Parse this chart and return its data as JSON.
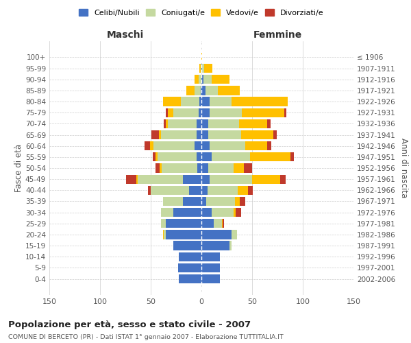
{
  "age_groups": [
    "0-4",
    "5-9",
    "10-14",
    "15-19",
    "20-24",
    "25-29",
    "30-34",
    "35-39",
    "40-44",
    "45-49",
    "50-54",
    "55-59",
    "60-64",
    "65-69",
    "70-74",
    "75-79",
    "80-84",
    "85-89",
    "90-94",
    "95-99",
    "100+"
  ],
  "birth_years": [
    "2002-2006",
    "1997-2001",
    "1992-1996",
    "1987-1991",
    "1982-1986",
    "1977-1981",
    "1972-1976",
    "1967-1971",
    "1962-1966",
    "1957-1961",
    "1952-1956",
    "1947-1951",
    "1942-1946",
    "1937-1941",
    "1932-1936",
    "1927-1931",
    "1922-1926",
    "1917-1921",
    "1912-1916",
    "1907-1911",
    "≤ 1906"
  ],
  "male": {
    "celibe": [
      22,
      23,
      22,
      28,
      35,
      35,
      28,
      18,
      12,
      18,
      4,
      5,
      7,
      5,
      5,
      3,
      2,
      1,
      0,
      0,
      0
    ],
    "coniugato": [
      0,
      0,
      0,
      0,
      2,
      5,
      12,
      20,
      38,
      45,
      35,
      38,
      40,
      35,
      28,
      25,
      18,
      6,
      3,
      1,
      0
    ],
    "vedovo": [
      0,
      0,
      0,
      0,
      1,
      0,
      0,
      0,
      0,
      1,
      2,
      2,
      4,
      2,
      2,
      5,
      18,
      8,
      4,
      1,
      0
    ],
    "divorziato": [
      0,
      0,
      0,
      0,
      0,
      0,
      0,
      0,
      3,
      10,
      4,
      3,
      5,
      7,
      2,
      2,
      0,
      0,
      0,
      0,
      0
    ]
  },
  "female": {
    "nubile": [
      18,
      18,
      18,
      28,
      30,
      12,
      10,
      5,
      6,
      8,
      7,
      10,
      8,
      7,
      7,
      8,
      8,
      4,
      2,
      1,
      0
    ],
    "coniugata": [
      0,
      0,
      0,
      2,
      5,
      8,
      22,
      28,
      30,
      42,
      25,
      38,
      35,
      32,
      30,
      32,
      22,
      12,
      8,
      2,
      0
    ],
    "vedova": [
      0,
      0,
      0,
      0,
      0,
      1,
      2,
      5,
      10,
      28,
      10,
      40,
      22,
      32,
      28,
      42,
      55,
      22,
      18,
      8,
      1
    ],
    "divorziata": [
      0,
      0,
      0,
      0,
      0,
      1,
      5,
      5,
      5,
      5,
      8,
      3,
      4,
      3,
      3,
      2,
      0,
      0,
      0,
      0,
      0
    ]
  },
  "colors": {
    "celibe": "#4472c4",
    "coniugato": "#c5d9a0",
    "vedovo": "#ffc000",
    "divorziato": "#c0392b"
  },
  "xlim": 150,
  "title": "Popolazione per età, sesso e stato civile - 2007",
  "subtitle": "COMUNE DI BERCETO (PR) - Dati ISTAT 1° gennaio 2007 - Elaborazione TUTTITALIA.IT",
  "ylabel_left": "Fasce di età",
  "ylabel_right": "Anni di nascita",
  "xlabel_left": "Maschi",
  "xlabel_right": "Femmine"
}
